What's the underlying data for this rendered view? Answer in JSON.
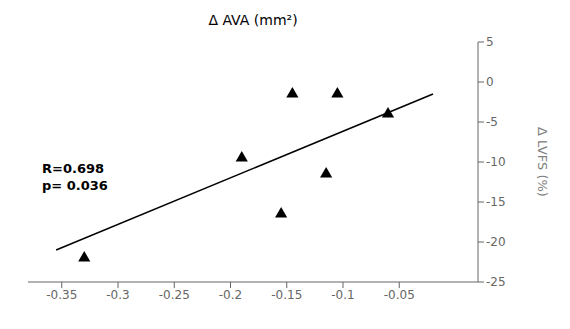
{
  "chart_data": {
    "type": "scatter",
    "xlabel": "Δ AVA (mm²)",
    "ylabel": "Δ LVFS (%)",
    "series": [
      {
        "type": "scatter",
        "marker": "triangle",
        "color": "black",
        "x": [
          -0.33,
          -0.19,
          -0.155,
          -0.145,
          -0.115,
          -0.105,
          -0.06
        ],
        "values": [
          -22,
          -9.5,
          -16.5,
          -1.5,
          -11.5,
          -1.5,
          -4
        ]
      },
      {
        "type": "line",
        "color": "black",
        "x": [
          -0.355,
          -0.02
        ],
        "values": [
          -21.0,
          -1.5
        ]
      }
    ],
    "xlim": [
      -0.38,
      0.02
    ],
    "ylim": [
      -25,
      5
    ],
    "xticks": [
      -0.35,
      -0.3,
      -0.25,
      -0.2,
      -0.15,
      -0.1,
      -0.05
    ],
    "yticks": [
      -25,
      -20,
      -15,
      -10,
      -5,
      0,
      5
    ],
    "annotations": [
      "R=0.698",
      "p= 0.036"
    ],
    "grid": false
  }
}
